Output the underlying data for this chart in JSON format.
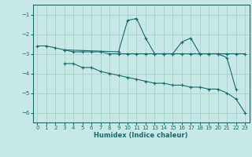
{
  "xlabel": "Humidex (Indice chaleur)",
  "bg_color": "#c8e8e8",
  "grid_color": "#a8d0d0",
  "line_color": "#1a6b6b",
  "xlim": [
    -0.5,
    23.5
  ],
  "ylim": [
    -6.5,
    -0.5
  ],
  "yticks": [
    -6,
    -5,
    -4,
    -3,
    -2,
    -1
  ],
  "xticks": [
    0,
    1,
    2,
    3,
    4,
    5,
    6,
    7,
    8,
    9,
    10,
    11,
    12,
    13,
    14,
    15,
    16,
    17,
    18,
    19,
    20,
    21,
    22,
    23
  ],
  "series": [
    {
      "x": [
        0,
        1,
        2,
        3,
        9,
        10,
        11,
        12,
        13,
        14,
        15,
        16,
        17,
        18,
        19,
        20,
        21,
        22
      ],
      "y": [
        -2.6,
        -2.6,
        -2.7,
        -2.8,
        -2.9,
        -1.3,
        -1.2,
        -2.2,
        -3.0,
        -3.0,
        -3.0,
        -2.4,
        -2.2,
        -3.0,
        -3.0,
        -3.0,
        -3.2,
        -4.8
      ]
    },
    {
      "x": [
        3,
        4,
        5,
        6,
        7,
        8,
        9,
        10,
        11,
        12,
        13,
        14,
        15,
        16,
        17,
        18,
        19,
        20,
        21,
        22,
        23
      ],
      "y": [
        -2.8,
        -2.9,
        -2.9,
        -2.9,
        -2.9,
        -3.0,
        -3.0,
        -3.0,
        -3.0,
        -3.0,
        -3.0,
        -3.0,
        -3.0,
        -3.0,
        -3.0,
        -3.0,
        -3.0,
        -3.0,
        -3.0,
        -3.0,
        -3.0
      ]
    },
    {
      "x": [
        3,
        4,
        5,
        6,
        7,
        8,
        9,
        10,
        11,
        12,
        13,
        14,
        15,
        16,
        17,
        18,
        19,
        20,
        21,
        22,
        23
      ],
      "y": [
        -3.5,
        -3.5,
        -3.7,
        -3.7,
        -3.9,
        -4.0,
        -4.1,
        -4.2,
        -4.3,
        -4.4,
        -4.5,
        -4.5,
        -4.6,
        -4.6,
        -4.7,
        -4.7,
        -4.8,
        -4.8,
        -5.0,
        -5.3,
        -6.0
      ]
    }
  ]
}
